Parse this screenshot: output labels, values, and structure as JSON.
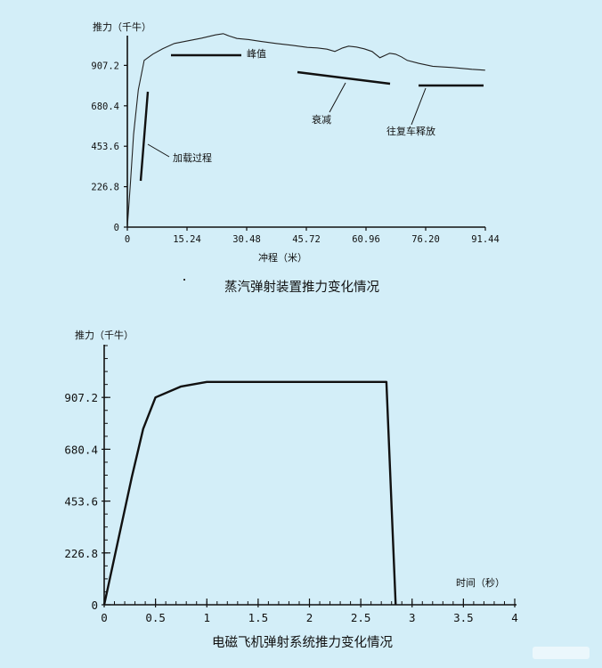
{
  "chart_data": [
    {
      "type": "line",
      "title": "蒸汽弹射装置推力变化情况",
      "xlabel": "冲程（米）",
      "ylabel": "推力（千牛）",
      "x_ticks": [
        "0",
        "15.24",
        "30.48",
        "45.72",
        "60.96",
        "76.20",
        "91.44"
      ],
      "y_ticks": [
        "0",
        "226.8",
        "453.6",
        "680.4",
        "907.2"
      ],
      "xlim": [
        0,
        91.44
      ],
      "ylim": [
        0,
        1134
      ],
      "grid": false,
      "series": [
        {
          "x": [
            0,
            0.8,
            1.6,
            2.8,
            4.3,
            6.5,
            9.0,
            12.0,
            15.5,
            19.0,
            22.5,
            24.5,
            26.0,
            28.0,
            31.0,
            34.0,
            38.0,
            42.0,
            46.0,
            48.5,
            51.0,
            53.0,
            55.0,
            56.5,
            58.5,
            60.5,
            62.5,
            64.5,
            67.0,
            68.5,
            70.0,
            71.5,
            74.5,
            78.0,
            83.0,
            88.0,
            91.4
          ],
          "y": [
            0,
            250,
            520,
            770,
            935,
            970,
            1000,
            1030,
            1045,
            1060,
            1078,
            1085,
            1072,
            1058,
            1052,
            1042,
            1030,
            1020,
            1008,
            1005,
            998,
            985,
            1005,
            1015,
            1010,
            1000,
            985,
            950,
            975,
            970,
            955,
            935,
            918,
            902,
            895,
            885,
            880
          ]
        }
      ],
      "annotations": [
        {
          "text": "峰值",
          "x_range": [
            10.5,
            28.5
          ],
          "y": 1070
        },
        {
          "text": "衰减",
          "x_range": [
            43.5,
            67.5
          ],
          "y": 985,
          "y_end": 912
        },
        {
          "text": "加载过程",
          "y_range": [
            280,
            850
          ]
        },
        {
          "text": "往复车释放",
          "x_range": [
            74,
            92
          ],
          "y": 885
        }
      ]
    },
    {
      "type": "line",
      "title": "电磁飞机弹射系统推力变化情况",
      "xlabel": "时间（秒）",
      "ylabel": "推力（千牛）",
      "x_ticks": [
        "0",
        "0.5",
        "1",
        "1.5",
        "2",
        "2.5",
        "3",
        "3.5",
        "4"
      ],
      "y_ticks": [
        "0",
        "226.8",
        "453.6",
        "680.4",
        "907.2"
      ],
      "xlim": [
        0,
        4
      ],
      "ylim": [
        0,
        1134
      ],
      "grid": false,
      "series": [
        {
          "x": [
            0,
            0.27,
            0.38,
            0.5,
            0.75,
            1.0,
            2.75,
            2.84
          ],
          "y": [
            0,
            560,
            770,
            907.2,
            955,
            975,
            975,
            0
          ]
        }
      ]
    }
  ]
}
